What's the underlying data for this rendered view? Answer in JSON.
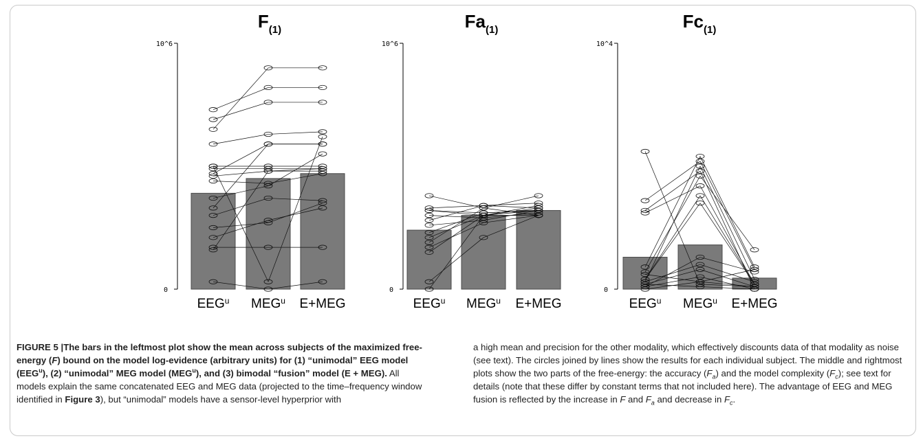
{
  "chart_data": [
    {
      "type": "bar",
      "title_main": "F",
      "title_sub": "(1)",
      "ytick_top": "10^6",
      "ytick_bottom": "0",
      "ylim": [
        0,
        1
      ],
      "categories": [
        "EEG",
        "MEG",
        "E+MEG"
      ],
      "category_sups": [
        "u",
        "u",
        ""
      ],
      "values": [
        0.39,
        0.45,
        0.47
      ],
      "subjects": [
        [
          0.73,
          0.82,
          0.82
        ],
        [
          0.69,
          0.76,
          0.76
        ],
        [
          0.65,
          0.9,
          0.9
        ],
        [
          0.59,
          0.63,
          0.64
        ],
        [
          0.5,
          0.5,
          0.5
        ],
        [
          0.49,
          0.49,
          0.49
        ],
        [
          0.47,
          0.59,
          0.59
        ],
        [
          0.46,
          0.48,
          0.48
        ],
        [
          0.44,
          0.43,
          0.47
        ],
        [
          0.37,
          0.42,
          0.55
        ],
        [
          0.33,
          0.59,
          0.59
        ],
        [
          0.3,
          0.37,
          0.36
        ],
        [
          0.25,
          0.27,
          0.35
        ],
        [
          0.21,
          0.28,
          0.33
        ],
        [
          0.17,
          0.17,
          0.17
        ],
        [
          0.16,
          0.48,
          0.49
        ],
        [
          0.03,
          0.0,
          0.03
        ],
        [
          0.5,
          0.03,
          0.62
        ]
      ]
    },
    {
      "type": "bar",
      "title_main": "Fa",
      "title_sub": "(1)",
      "ytick_top": "10^6",
      "ytick_bottom": "0",
      "ylim": [
        0,
        1
      ],
      "categories": [
        "EEG",
        "MEG",
        "E+MEG"
      ],
      "category_sups": [
        "u",
        "u",
        ""
      ],
      "values": [
        0.24,
        0.3,
        0.32
      ],
      "subjects": [
        [
          0.38,
          0.33,
          0.38
        ],
        [
          0.33,
          0.34,
          0.35
        ],
        [
          0.32,
          0.3,
          0.33
        ],
        [
          0.32,
          0.31,
          0.32
        ],
        [
          0.3,
          0.29,
          0.31
        ],
        [
          0.28,
          0.34,
          0.33
        ],
        [
          0.26,
          0.28,
          0.32
        ],
        [
          0.23,
          0.31,
          0.32
        ],
        [
          0.21,
          0.3,
          0.3
        ],
        [
          0.19,
          0.33,
          0.3
        ],
        [
          0.17,
          0.27,
          0.3
        ],
        [
          0.15,
          0.3,
          0.32
        ],
        [
          0.03,
          0.21,
          0.3
        ],
        [
          0.0,
          0.3,
          0.34
        ]
      ]
    },
    {
      "type": "bar",
      "title_main": "Fc",
      "title_sub": "(1)",
      "ytick_top": "10^4",
      "ytick_bottom": "0",
      "ylim": [
        0,
        1
      ],
      "categories": [
        "EEG",
        "MEG",
        "E+MEG"
      ],
      "category_sups": [
        "u",
        "u",
        ""
      ],
      "values": [
        0.13,
        0.18,
        0.045
      ],
      "subjects": [
        [
          0.56,
          0.02,
          0.01
        ],
        [
          0.36,
          0.52,
          0.08
        ],
        [
          0.32,
          0.48,
          0.0
        ],
        [
          0.31,
          0.42,
          0.02
        ],
        [
          0.09,
          0.54,
          0.09
        ],
        [
          0.07,
          0.46,
          0.16
        ],
        [
          0.06,
          0.03,
          0.08
        ],
        [
          0.04,
          0.35,
          0.02
        ],
        [
          0.03,
          0.1,
          0.03
        ],
        [
          0.02,
          0.08,
          0.01
        ],
        [
          0.01,
          0.05,
          0.0
        ],
        [
          0.04,
          0.38,
          0.02
        ],
        [
          0.03,
          0.5,
          0.04
        ],
        [
          0.0,
          0.03,
          0.01
        ],
        [
          0.01,
          0.13,
          0.07
        ],
        [
          0.02,
          0.01,
          0.0
        ]
      ]
    }
  ],
  "caption": {
    "left": {
      "label": "FIGURE 5 |",
      "bold_a": "The bars in the leftmost plot show the mean across subjects of the maximized free-energy (",
      "bold_F": "F",
      "bold_b": ") bound on the model log-evidence (arbitrary units) for (1) “unimodal” EEG model (EEG",
      "sup1": "u",
      "bold_c": "), (2) “unimodal” MEG model (MEG",
      "sup2": "u",
      "bold_d": "), and (3) bimodal “fusion” model (E + MEG).",
      "text_a": " All models explain the same concatenated EEG and MEG data (projected to the time–frequency window identified in ",
      "fig_ref": "Figure 3",
      "text_b": "), but “unimodal” models have a sensor-level hyperprior with"
    },
    "right": {
      "text_a": "a high mean and precision for the other modality, which effectively discounts data of that modality as noise (see text). The circles joined by lines show the results for each individual subject. The middle and rightmost plots show the two parts of the free-energy: the accuracy (",
      "Fa": "F",
      "Fa_sub": "a",
      "text_b": ") and the model complexity (",
      "Fc": "F",
      "Fc_sub": "c",
      "text_c": "); see text for details (note that these differ by constant terms that not included here). The advantage of EEG and MEG fusion is reflected by the increase in ",
      "F1": "F",
      "text_d": " and ",
      "F2": "F",
      "F2_sub": "a",
      "text_e": " and decrease in ",
      "F3": "F",
      "F3_sub": "c",
      "text_f": "."
    }
  }
}
